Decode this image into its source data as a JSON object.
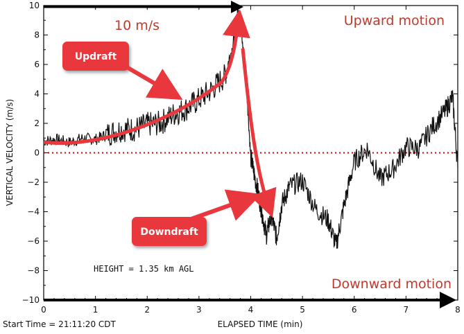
{
  "chart_data": {
    "type": "line",
    "title": "",
    "xlabel": "ELAPSED TIME (min)",
    "ylabel": "VERTICAL VELOCITY (m/s)",
    "xlim": [
      0,
      8
    ],
    "ylim": [
      -10,
      10
    ],
    "xticks": [
      "0",
      "1",
      "2",
      "3",
      "4",
      "5",
      "6",
      "7",
      "8"
    ],
    "yticks": [
      "10",
      "8",
      "6",
      "4",
      "2",
      "0",
      "−2",
      "−4",
      "−6",
      "−8",
      "−10"
    ],
    "grid": false,
    "series": [
      {
        "x": [
          0,
          0.25,
          0.5,
          0.75,
          1.0,
          1.25,
          1.5,
          1.75,
          2.0,
          2.25,
          2.5,
          2.75,
          3.0,
          3.25,
          3.5,
          3.65,
          3.75,
          3.8,
          3.9,
          4.0,
          4.1,
          4.2,
          4.3,
          4.4,
          4.5,
          4.6,
          4.75,
          5.0,
          5.25,
          5.5,
          5.65,
          5.8,
          6.0,
          6.25,
          6.5,
          6.75,
          7.0,
          7.25,
          7.5,
          7.75,
          7.9,
          8.0
        ],
        "values": [
          0.8,
          0.9,
          0.7,
          1.0,
          0.9,
          1.3,
          1.6,
          1.6,
          1.9,
          2.0,
          2.6,
          3.0,
          3.6,
          4.3,
          5.2,
          7.2,
          9.8,
          8.6,
          5.6,
          -0.3,
          -2.0,
          -3.7,
          -5.6,
          -4.2,
          -5.8,
          -3.5,
          -2.3,
          -1.9,
          -3.8,
          -4.6,
          -6.3,
          -3.6,
          -0.6,
          0.3,
          -1.8,
          -1.1,
          0.4,
          0.3,
          1.7,
          2.8,
          3.8,
          -1.0
        ],
        "color": "#111111"
      }
    ],
    "reference_line": {
      "y": 0,
      "color": "#cc0000",
      "style": "dotted"
    }
  },
  "annotations": {
    "start_time": "Start Time = 21:11:20 CDT",
    "height": "HEIGHT = 1.35 km AGL",
    "speed_label": "10 m/s",
    "upward_motion": "Upward motion",
    "downward_motion": "Downward motion",
    "updraft": "Updraft",
    "downdraft": "Downdraft",
    "accent_color": "#e8383d",
    "text_red": "#c0392b"
  }
}
